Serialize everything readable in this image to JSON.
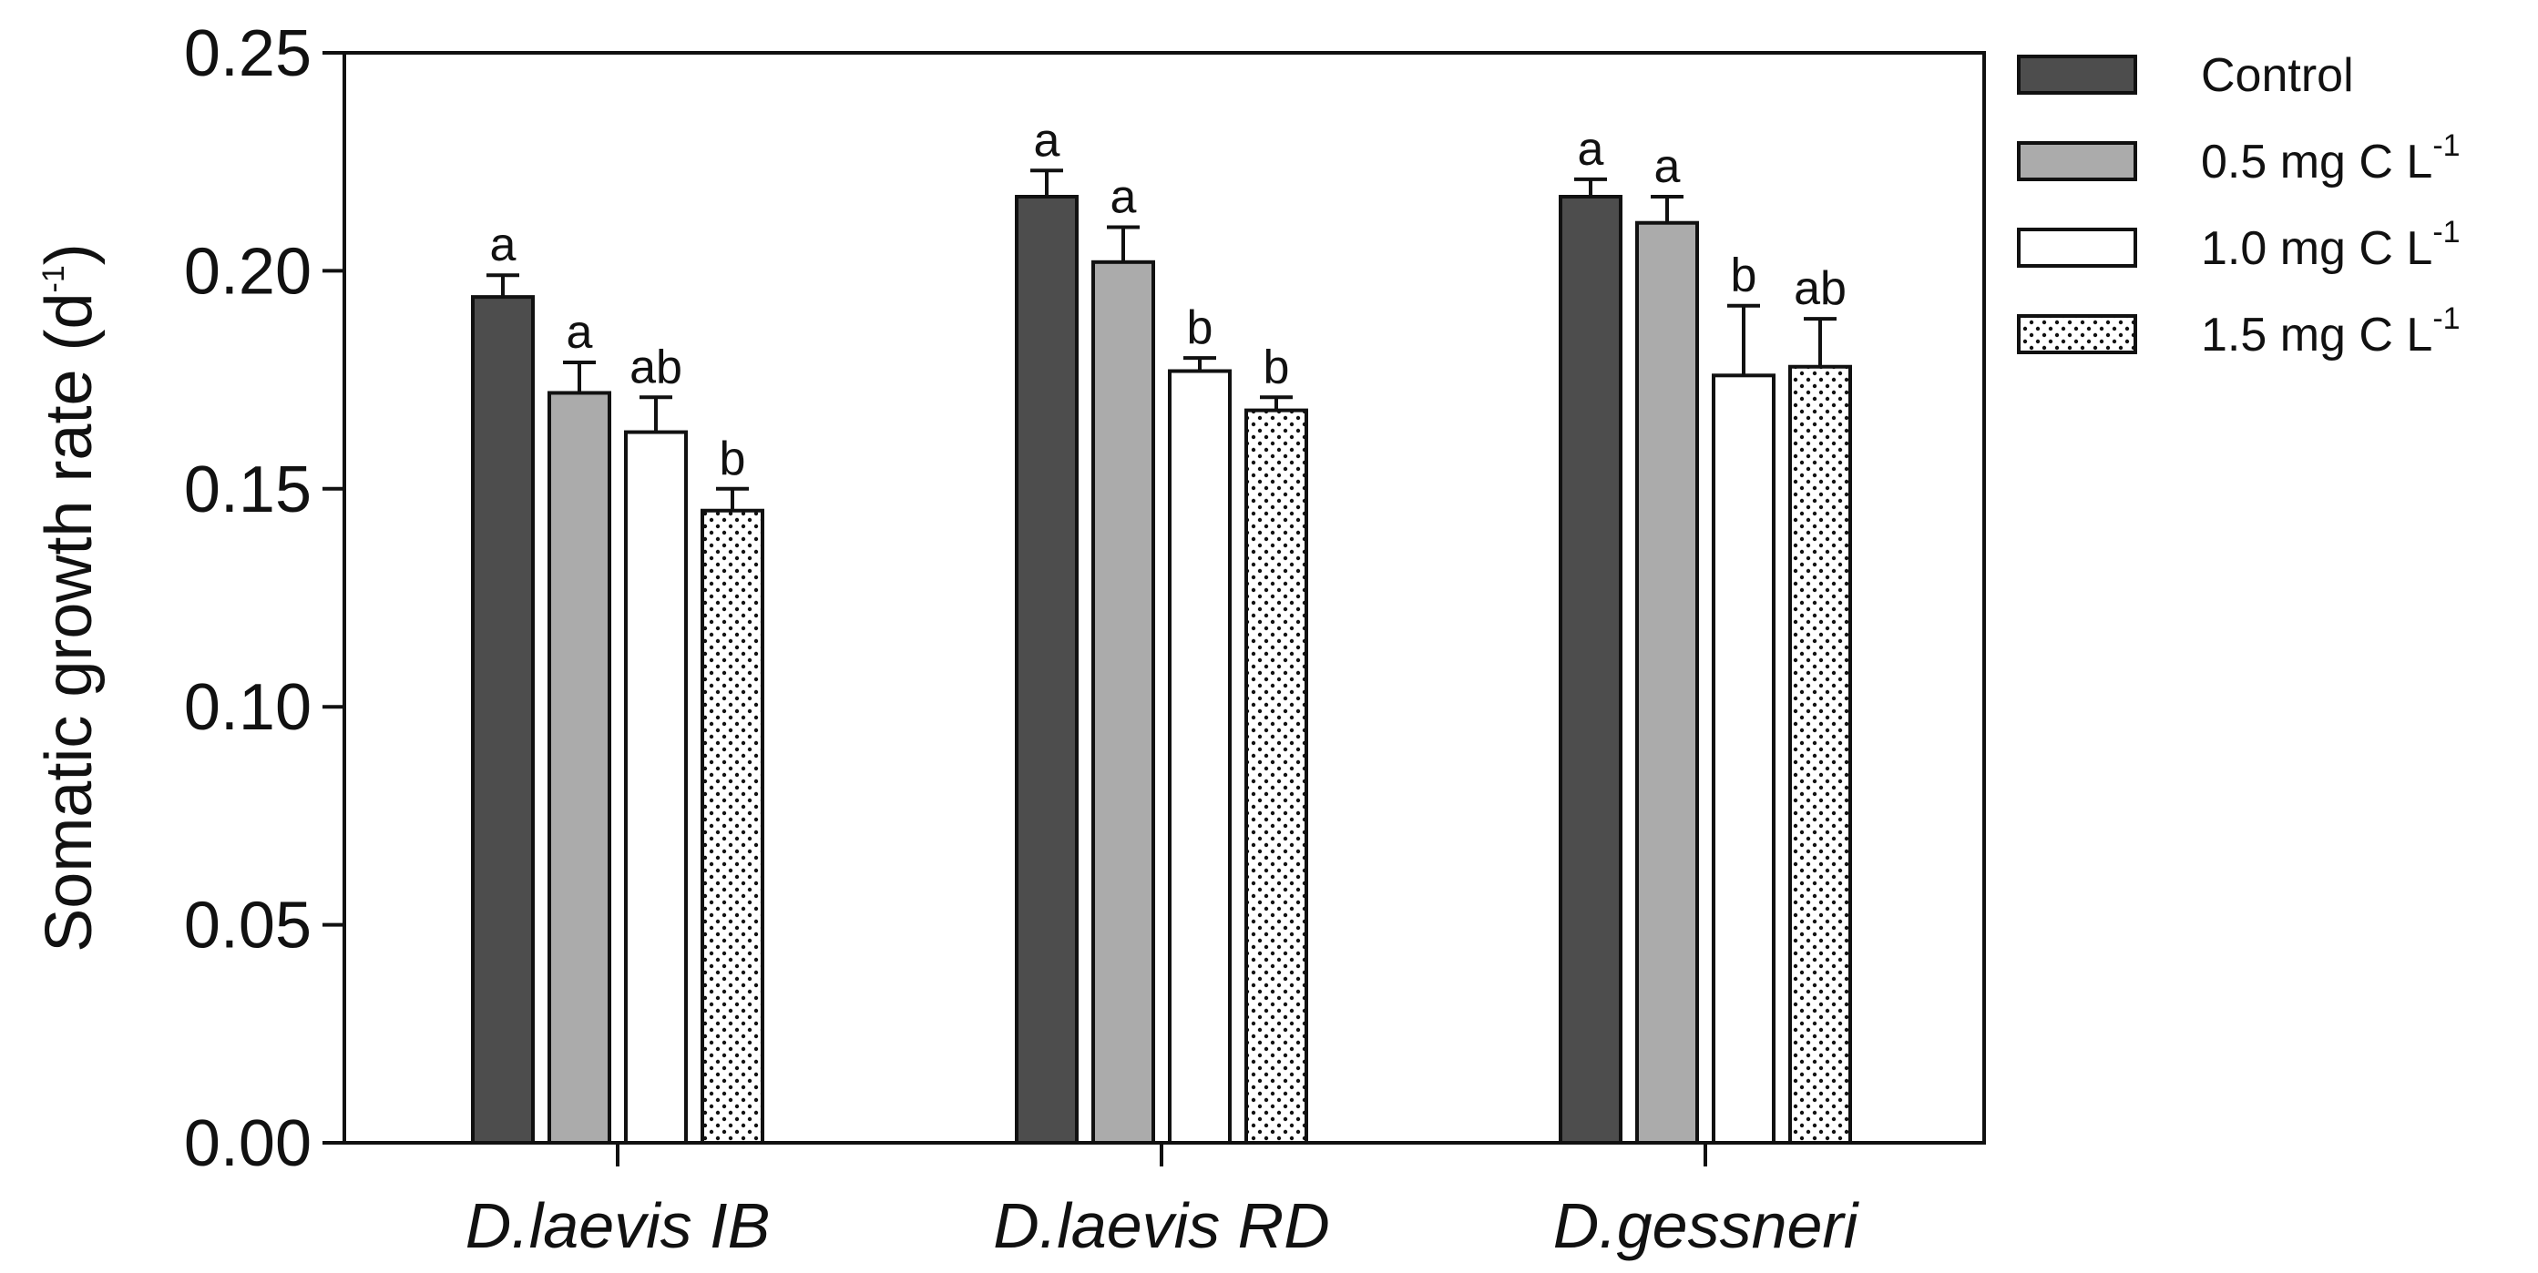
{
  "chart_data": {
    "type": "bar",
    "title": "",
    "xlabel": "",
    "ylabel": "Somatic growth rate (d",
    "ylabel_sup": "-1",
    "ylabel_close": ")",
    "ylim": [
      0,
      0.25
    ],
    "yticks": [
      "0.00",
      "0.05",
      "0.10",
      "0.15",
      "0.20",
      "0.25"
    ],
    "categories": [
      "D.laevis IB",
      "D.laevis RD",
      "D.gessneri"
    ],
    "series": [
      {
        "name": "Control",
        "name_sup": "",
        "fill": "#4d4d4d",
        "pattern": "solid",
        "values": [
          0.194,
          0.217,
          0.217
        ],
        "errors": [
          0.005,
          0.006,
          0.004
        ],
        "letters": [
          "a",
          "a",
          "a"
        ]
      },
      {
        "name": "0.5 mg C L",
        "name_sup": "-1",
        "fill": "#ababab",
        "pattern": "solid",
        "values": [
          0.172,
          0.202,
          0.211
        ],
        "errors": [
          0.007,
          0.008,
          0.006
        ],
        "letters": [
          "a",
          "a",
          "a"
        ]
      },
      {
        "name": "1.0 mg C L",
        "name_sup": "-1",
        "fill": "#ffffff",
        "pattern": "solid",
        "values": [
          0.163,
          0.177,
          0.176
        ],
        "errors": [
          0.008,
          0.003,
          0.016
        ],
        "letters": [
          "ab",
          "b",
          "b"
        ]
      },
      {
        "name": "1.5 mg C L",
        "name_sup": "-1",
        "fill": "#ffffff",
        "pattern": "dots",
        "values": [
          0.145,
          0.168,
          0.178
        ],
        "errors": [
          0.005,
          0.003,
          0.011
        ],
        "letters": [
          "b",
          "b",
          "ab"
        ]
      }
    ],
    "legend_position": "top-right, outside plot"
  }
}
